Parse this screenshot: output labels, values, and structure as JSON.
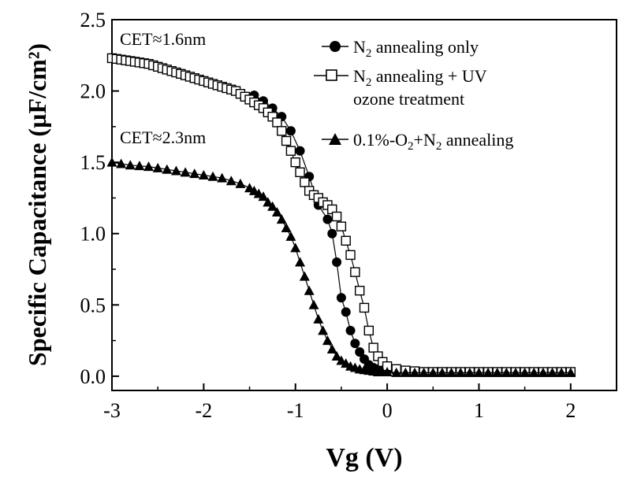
{
  "chart_data": {
    "type": "line",
    "xlabel": "Vg (V)",
    "ylabel": "Specific Capacitance (µF/cm²)",
    "xlim": [
      -3,
      2.5
    ],
    "ylim": [
      -0.1,
      2.5
    ],
    "xticks": [
      "-3",
      "-2",
      "-1",
      "0",
      "1",
      "2"
    ],
    "yticks": [
      "0.0",
      "0.5",
      "1.0",
      "1.5",
      "2.0",
      "2.5"
    ],
    "grid": false,
    "legend_position": "top-right",
    "annotations": [
      "CET≈1.6nm",
      "CET≈2.3nm"
    ],
    "series": [
      {
        "name": "N2 annealing only",
        "marker": "filled-circle",
        "x": [
          -1.45,
          -1.35,
          -1.25,
          -1.15,
          -1.05,
          -0.95,
          -0.85,
          -0.75,
          -0.65,
          -0.6,
          -0.55,
          -0.5,
          -0.45,
          -0.4,
          -0.35,
          -0.3,
          -0.25,
          -0.2,
          -0.15,
          -0.1,
          0.0,
          0.1,
          0.2,
          0.3,
          0.4,
          0.5,
          0.6,
          0.7,
          0.8,
          0.9,
          1.0,
          1.1,
          1.2,
          1.3,
          1.4,
          1.5,
          1.6,
          1.7,
          1.8,
          1.9,
          2.0
        ],
        "y": [
          1.97,
          1.93,
          1.88,
          1.82,
          1.72,
          1.58,
          1.4,
          1.2,
          1.1,
          1.0,
          0.8,
          0.55,
          0.45,
          0.32,
          0.23,
          0.17,
          0.12,
          0.08,
          0.06,
          0.05,
          0.04,
          0.035,
          0.03,
          0.03,
          0.03,
          0.03,
          0.03,
          0.03,
          0.03,
          0.03,
          0.03,
          0.03,
          0.03,
          0.03,
          0.03,
          0.03,
          0.03,
          0.03,
          0.03,
          0.03,
          0.03
        ]
      },
      {
        "name": "N2 annealing + UV ozone treatment",
        "marker": "open-square",
        "x": [
          -3.0,
          -2.95,
          -2.9,
          -2.85,
          -2.8,
          -2.75,
          -2.7,
          -2.65,
          -2.6,
          -2.55,
          -2.5,
          -2.45,
          -2.4,
          -2.35,
          -2.3,
          -2.25,
          -2.2,
          -2.15,
          -2.1,
          -2.05,
          -2.0,
          -1.95,
          -1.9,
          -1.85,
          -1.8,
          -1.75,
          -1.7,
          -1.65,
          -1.6,
          -1.55,
          -1.5,
          -1.45,
          -1.4,
          -1.35,
          -1.3,
          -1.25,
          -1.2,
          -1.15,
          -1.1,
          -1.05,
          -1.0,
          -0.95,
          -0.9,
          -0.85,
          -0.8,
          -0.75,
          -0.7,
          -0.65,
          -0.6,
          -0.55,
          -0.5,
          -0.45,
          -0.4,
          -0.35,
          -0.3,
          -0.25,
          -0.2,
          -0.15,
          -0.1,
          -0.05,
          0.0,
          0.1,
          0.2,
          0.3,
          0.4,
          0.5,
          0.6,
          0.7,
          0.8,
          0.9,
          1.0,
          1.1,
          1.2,
          1.3,
          1.4,
          1.5,
          1.6,
          1.7,
          1.8,
          1.9,
          2.0
        ],
        "y": [
          2.23,
          2.225,
          2.22,
          2.215,
          2.21,
          2.205,
          2.2,
          2.195,
          2.19,
          2.18,
          2.17,
          2.16,
          2.15,
          2.14,
          2.13,
          2.12,
          2.11,
          2.1,
          2.09,
          2.08,
          2.07,
          2.06,
          2.05,
          2.04,
          2.03,
          2.02,
          2.01,
          2.0,
          1.98,
          1.96,
          1.94,
          1.92,
          1.9,
          1.88,
          1.85,
          1.82,
          1.78,
          1.72,
          1.65,
          1.58,
          1.5,
          1.43,
          1.36,
          1.3,
          1.27,
          1.25,
          1.22,
          1.2,
          1.17,
          1.12,
          1.05,
          0.95,
          0.85,
          0.73,
          0.6,
          0.48,
          0.32,
          0.2,
          0.14,
          0.1,
          0.07,
          0.05,
          0.04,
          0.035,
          0.03,
          0.03,
          0.03,
          0.03,
          0.03,
          0.03,
          0.03,
          0.03,
          0.03,
          0.03,
          0.03,
          0.03,
          0.03,
          0.03,
          0.03,
          0.03,
          0.03
        ]
      },
      {
        "name": "0.1%-O2+N2 annealing",
        "marker": "filled-triangle",
        "x": [
          -3.0,
          -2.9,
          -2.8,
          -2.7,
          -2.6,
          -2.5,
          -2.4,
          -2.3,
          -2.2,
          -2.1,
          -2.0,
          -1.9,
          -1.8,
          -1.7,
          -1.6,
          -1.5,
          -1.45,
          -1.4,
          -1.35,
          -1.3,
          -1.25,
          -1.2,
          -1.15,
          -1.1,
          -1.05,
          -1.0,
          -0.95,
          -0.9,
          -0.85,
          -0.8,
          -0.75,
          -0.7,
          -0.65,
          -0.6,
          -0.55,
          -0.5,
          -0.45,
          -0.4,
          -0.35,
          -0.3,
          -0.25,
          -0.2,
          -0.15,
          -0.1,
          -0.05,
          0.0,
          0.1,
          0.2,
          0.3,
          0.4,
          0.5,
          0.6,
          0.7,
          0.8,
          0.9,
          1.0,
          1.1,
          1.2,
          1.3,
          1.4,
          1.5,
          1.6,
          1.7,
          1.8,
          1.9,
          2.0
        ],
        "y": [
          1.5,
          1.49,
          1.48,
          1.475,
          1.47,
          1.46,
          1.45,
          1.44,
          1.43,
          1.42,
          1.41,
          1.4,
          1.39,
          1.37,
          1.35,
          1.32,
          1.3,
          1.28,
          1.26,
          1.22,
          1.19,
          1.15,
          1.1,
          1.04,
          0.98,
          0.9,
          0.8,
          0.7,
          0.6,
          0.5,
          0.4,
          0.32,
          0.25,
          0.19,
          0.14,
          0.11,
          0.09,
          0.07,
          0.06,
          0.05,
          0.045,
          0.04,
          0.035,
          0.03,
          0.03,
          0.03,
          0.025,
          0.025,
          0.025,
          0.025,
          0.025,
          0.025,
          0.025,
          0.025,
          0.025,
          0.025,
          0.025,
          0.025,
          0.025,
          0.025,
          0.025,
          0.025,
          0.025,
          0.025,
          0.025,
          0.025
        ]
      }
    ]
  },
  "legend": [
    {
      "main": "N",
      "sub": "2",
      "rest": " annealing only",
      "line2": ""
    },
    {
      "main": "N",
      "sub": "2",
      "rest": " annealing + UV",
      "line2": "ozone treatment"
    },
    {
      "main": "0.1%-O",
      "sub": "2",
      "rest": "+N",
      "sub2": "2",
      "rest2": " annealing",
      "line2": ""
    }
  ]
}
